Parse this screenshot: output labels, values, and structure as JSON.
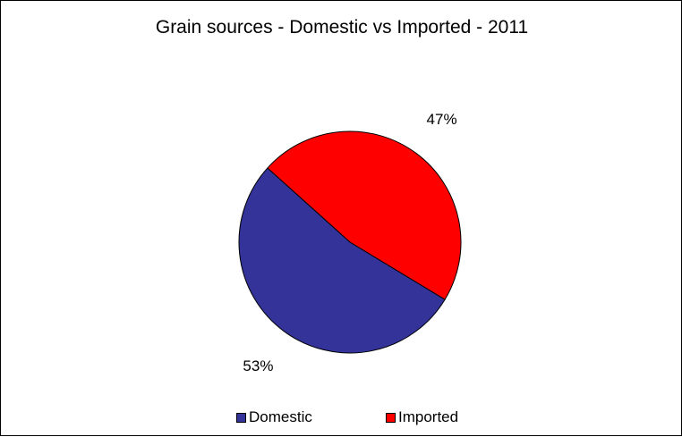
{
  "chart_data": {
    "type": "pie",
    "title": "Grain sources - Domestic vs Imported - 2011",
    "slices": [
      {
        "name": "Domestic",
        "value": 53,
        "label": "53%",
        "color": "#333399"
      },
      {
        "name": "Imported",
        "value": 47,
        "label": "47%",
        "color": "#ff0000"
      }
    ],
    "legend_position": "bottom",
    "start_direction": "left-upper",
    "stroke_color": "#000000"
  }
}
